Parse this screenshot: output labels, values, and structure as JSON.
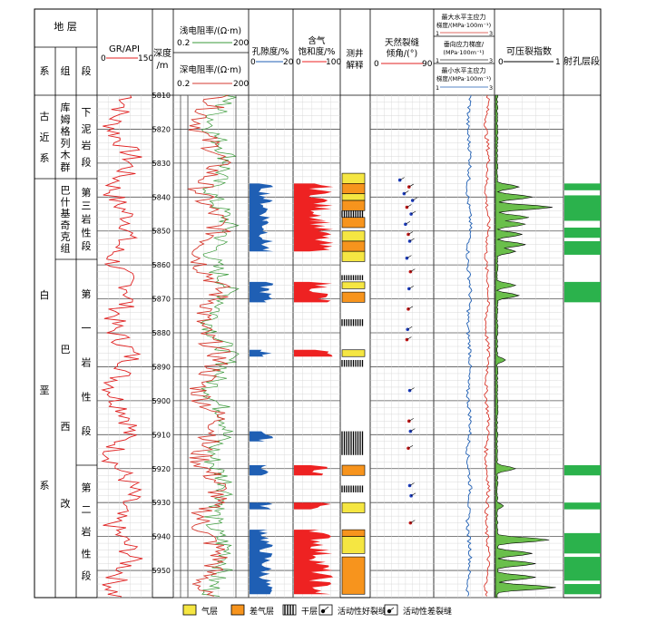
{
  "header": {
    "strata_title": "地 层",
    "col_system": "系",
    "col_group": "组",
    "col_member": "段",
    "gr_title": "GR/API",
    "gr_min": "0",
    "gr_max": "150",
    "depth_title_1": "深度",
    "depth_title_2": "/m",
    "res_shallow_title": "浅电阻率/(Ω·m)",
    "res_shallow_min": "0.2",
    "res_shallow_max": "200",
    "res_deep_title": "深电阻率/(Ω·m)",
    "res_deep_min": "0.2",
    "res_deep_max": "200",
    "porosity_title": "孔隙度/%",
    "porosity_min": "0",
    "porosity_max": "20",
    "gas_title_1": "含气",
    "gas_title_2": "饱和度/%",
    "gas_min": "0",
    "gas_max": "100",
    "interp_title_1": "测井",
    "interp_title_2": "解释",
    "frac_title_1": "天然裂缝",
    "frac_title_2": "倾角/(°)",
    "frac_min": "0",
    "frac_max": "90",
    "stress_max_title_1": "最大水平主应力",
    "stress_max_title_2": "梯度/(MPa·100m⁻¹)",
    "stress_v_title_1": "垂向应力梯度/",
    "stress_v_title_2": "(MPa·100m⁻¹)",
    "stress_min_title_1": "最小水平主应力",
    "stress_min_title_2": "梯度/(MPa·100m⁻¹)",
    "stress_min": "1",
    "stress_max": "3",
    "frac_index_title": "可压裂指数",
    "frac_index_min": "0",
    "frac_index_max": "1",
    "perf_title": "射孔层段"
  },
  "strata": {
    "system_upper": [
      "古",
      "近",
      "系"
    ],
    "system_lower": [
      "白",
      "垩",
      "系"
    ],
    "group_upper": [
      "库",
      "姆",
      "格",
      "列",
      "木",
      "群"
    ],
    "group_mid": [
      "巴",
      "什",
      "基",
      "奇",
      "克",
      "组"
    ],
    "group_lower": [
      "巴",
      "西",
      "改"
    ],
    "member_1": [
      "下",
      "泥",
      "岩",
      "段"
    ],
    "member_2": [
      "第",
      "三",
      "岩",
      "性",
      "段"
    ],
    "member_3": [
      "第",
      "一",
      "岩",
      "性",
      "段"
    ],
    "member_4": [
      "第",
      "二",
      "岩",
      "性",
      "段"
    ]
  },
  "legend": {
    "gas": "气层",
    "poor_gas": "差气层",
    "dry": "干层",
    "good_frac": "活动性好裂缝",
    "poor_frac": "活动性差裂缝"
  },
  "colors": {
    "gas": "#f5e642",
    "poor_gas": "#f7941d",
    "porosity": "#1f5fb4",
    "saturation": "#ee2222",
    "frac_index": "#6abf4b",
    "perforation": "#2bb24c",
    "deep_res": "#d63a2f",
    "shallow_res": "#3a9a3a",
    "gr": "#e02020",
    "stress_min": "#1f5fb4",
    "stress_max": "#d93a2f"
  },
  "chart_data": {
    "type": "well-log",
    "depth_unit": "m",
    "depth_range": [
      5810,
      5958
    ],
    "depth_ticks": [
      5810,
      5820,
      5830,
      5840,
      5850,
      5860,
      5870,
      5880,
      5890,
      5900,
      5910,
      5920,
      5930,
      5940,
      5950
    ],
    "tracks": {
      "gr": {
        "unit": "API",
        "range": [
          0,
          150
        ],
        "color": "#e02020"
      },
      "shallow_resistivity": {
        "unit": "Ω·m",
        "range": [
          0.2,
          200
        ],
        "color": "#3a9a3a"
      },
      "deep_resistivity": {
        "unit": "Ω·m",
        "range": [
          0.2,
          200
        ],
        "color": "#d63a2f"
      },
      "porosity": {
        "unit": "%",
        "range": [
          0,
          20
        ],
        "color": "#1f5fb4"
      },
      "gas_saturation": {
        "unit": "%",
        "range": [
          0,
          100
        ],
        "color": "#ee2222"
      },
      "fracture_dip": {
        "unit": "°",
        "range": [
          0,
          90
        ]
      },
      "stress_gradient": {
        "unit": "MPa·100m⁻¹",
        "range": [
          1,
          3
        ]
      },
      "fracability_index": {
        "range": [
          0,
          1
        ],
        "color": "#6abf4b"
      }
    },
    "porosity_intervals": [
      [
        5836,
        5847
      ],
      [
        5847,
        5856
      ],
      [
        5865,
        5871
      ],
      [
        5885,
        5887
      ],
      [
        5909,
        5912
      ],
      [
        5919,
        5922
      ],
      [
        5930,
        5932
      ],
      [
        5938,
        5957
      ]
    ],
    "saturation_intervals": [
      [
        5836,
        5847
      ],
      [
        5847,
        5856
      ],
      [
        5865,
        5871
      ],
      [
        5885,
        5887
      ],
      [
        5919,
        5922
      ],
      [
        5930,
        5932
      ],
      [
        5938,
        5957
      ]
    ],
    "interpretation": [
      {
        "top": 5833,
        "bottom": 5836,
        "type": "gas"
      },
      {
        "top": 5836,
        "bottom": 5839,
        "type": "poor_gas"
      },
      {
        "top": 5839,
        "bottom": 5841,
        "type": "gas"
      },
      {
        "top": 5841,
        "bottom": 5844,
        "type": "poor_gas"
      },
      {
        "top": 5844,
        "bottom": 5846,
        "type": "dry"
      },
      {
        "top": 5846,
        "bottom": 5849,
        "type": "poor_gas"
      },
      {
        "top": 5850,
        "bottom": 5853,
        "type": "gas"
      },
      {
        "top": 5853,
        "bottom": 5856,
        "type": "poor_gas"
      },
      {
        "top": 5856,
        "bottom": 5859,
        "type": "gas"
      },
      {
        "top": 5863,
        "bottom": 5864.5,
        "type": "dry"
      },
      {
        "top": 5865,
        "bottom": 5867,
        "type": "gas"
      },
      {
        "top": 5868,
        "bottom": 5871,
        "type": "poor_gas"
      },
      {
        "top": 5876,
        "bottom": 5878,
        "type": "dry"
      },
      {
        "top": 5885,
        "bottom": 5887,
        "type": "gas"
      },
      {
        "top": 5888,
        "bottom": 5890,
        "type": "dry"
      },
      {
        "top": 5909,
        "bottom": 5916,
        "type": "dry"
      },
      {
        "top": 5919,
        "bottom": 5922,
        "type": "poor_gas"
      },
      {
        "top": 5925,
        "bottom": 5927,
        "type": "dry"
      },
      {
        "top": 5930,
        "bottom": 5933,
        "type": "gas"
      },
      {
        "top": 5938,
        "bottom": 5940,
        "type": "poor_gas"
      },
      {
        "top": 5940,
        "bottom": 5945,
        "type": "gas"
      },
      {
        "top": 5946,
        "bottom": 5957,
        "type": "poor_gas"
      }
    ],
    "fractures": [
      {
        "depth": 5835,
        "dip": 42,
        "active": "good"
      },
      {
        "depth": 5837,
        "dip": 55,
        "active": "poor"
      },
      {
        "depth": 5839,
        "dip": 48,
        "active": "good"
      },
      {
        "depth": 5841,
        "dip": 60,
        "active": "good"
      },
      {
        "depth": 5843,
        "dip": 52,
        "active": "poor"
      },
      {
        "depth": 5845,
        "dip": 58,
        "active": "good"
      },
      {
        "depth": 5848,
        "dip": 50,
        "active": "good"
      },
      {
        "depth": 5851,
        "dip": 54,
        "active": "poor"
      },
      {
        "depth": 5853,
        "dip": 56,
        "active": "good"
      },
      {
        "depth": 5858,
        "dip": 52,
        "active": "good"
      },
      {
        "depth": 5862,
        "dip": 57,
        "active": "poor"
      },
      {
        "depth": 5867,
        "dip": 55,
        "active": "good"
      },
      {
        "depth": 5873,
        "dip": 54,
        "active": "poor"
      },
      {
        "depth": 5879,
        "dip": 53,
        "active": "good"
      },
      {
        "depth": 5882,
        "dip": 52,
        "active": "poor"
      },
      {
        "depth": 5897,
        "dip": 56,
        "active": "good"
      },
      {
        "depth": 5906,
        "dip": 55,
        "active": "poor"
      },
      {
        "depth": 5909,
        "dip": 57,
        "active": "good"
      },
      {
        "depth": 5914,
        "dip": 54,
        "active": "poor"
      },
      {
        "depth": 5925,
        "dip": 56,
        "active": "good"
      },
      {
        "depth": 5928,
        "dip": 58,
        "active": "good"
      },
      {
        "depth": 5936,
        "dip": 57,
        "active": "poor"
      }
    ],
    "fracability_peaks": [
      {
        "depth": 5837,
        "value": 0.35
      },
      {
        "depth": 5840,
        "value": 0.55
      },
      {
        "depth": 5843,
        "value": 0.85
      },
      {
        "depth": 5846,
        "value": 0.5
      },
      {
        "depth": 5848,
        "value": 0.45
      },
      {
        "depth": 5851,
        "value": 0.4
      },
      {
        "depth": 5854,
        "value": 0.45
      },
      {
        "depth": 5856,
        "value": 0.3
      },
      {
        "depth": 5866,
        "value": 0.3
      },
      {
        "depth": 5869,
        "value": 0.35
      },
      {
        "depth": 5888,
        "value": 0.15
      },
      {
        "depth": 5920,
        "value": 0.3
      },
      {
        "depth": 5931,
        "value": 0.12
      },
      {
        "depth": 5941,
        "value": 0.8
      },
      {
        "depth": 5945,
        "value": 0.55
      },
      {
        "depth": 5948,
        "value": 0.6
      },
      {
        "depth": 5952,
        "value": 0.6
      },
      {
        "depth": 5955,
        "value": 0.9
      }
    ],
    "perforations": [
      [
        5836,
        5838
      ],
      [
        5839.5,
        5847
      ],
      [
        5849,
        5852
      ],
      [
        5853,
        5857
      ],
      [
        5865,
        5871
      ],
      [
        5919,
        5922
      ],
      [
        5930,
        5932
      ],
      [
        5939,
        5945
      ],
      [
        5946,
        5953
      ],
      [
        5954,
        5957
      ]
    ]
  }
}
